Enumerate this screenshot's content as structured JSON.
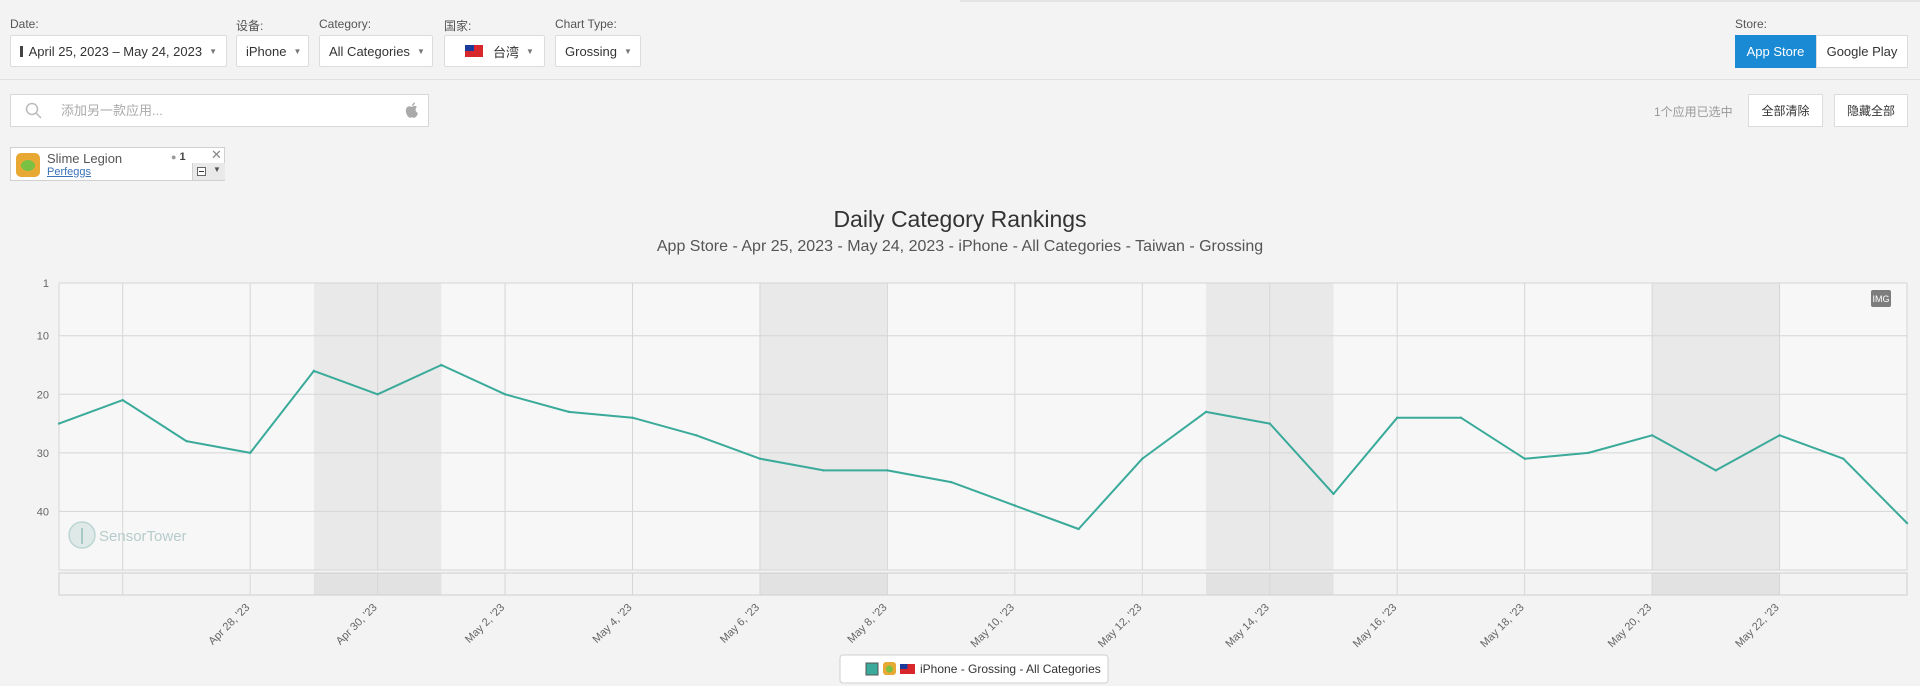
{
  "filters": {
    "date": {
      "label": "Date:",
      "value": "April 25, 2023 – May 24, 2023"
    },
    "device": {
      "label": "设备:",
      "value": "iPhone"
    },
    "category": {
      "label": "Category:",
      "value": "All Categories"
    },
    "country": {
      "label": "国家:",
      "value": "台湾"
    },
    "chart_type": {
      "label": "Chart Type:",
      "value": "Grossing"
    }
  },
  "store": {
    "label": "Store:",
    "options": [
      "App Store",
      "Google Play"
    ],
    "selected": "App Store",
    "accent": "#1a8ad4"
  },
  "search": {
    "placeholder": "添加另一款应用..."
  },
  "selection": {
    "count_text": "1个应用已选中",
    "clear_all": "全部清除",
    "hide_all": "隐藏全部"
  },
  "app_chip": {
    "name": "Slime Legion",
    "developer": "Perfeggs",
    "rank": "1",
    "icon": "slime-app-icon"
  },
  "chart_data": {
    "type": "line",
    "title": "Daily Category Rankings",
    "subtitle": "App Store - Apr 25, 2023 - May 24, 2023 - iPhone - All Categories - Taiwan - Grossing",
    "y_axis": {
      "reversed": true,
      "ticks": [
        1,
        10,
        20,
        30,
        40
      ],
      "range": [
        1,
        50
      ]
    },
    "x_ticks": [
      "Apr 28, '23",
      "Apr 30, '23",
      "May 2, '23",
      "May 4, '23",
      "May 6, '23",
      "May 8, '23",
      "May 10, '23",
      "May 12, '23",
      "May 14, '23",
      "May 16, '23",
      "May 18, '23",
      "May 20, '23",
      "May 22, '23"
    ],
    "x": [
      "Apr 25",
      "Apr 26",
      "Apr 27",
      "Apr 28",
      "Apr 29",
      "Apr 30",
      "May 1",
      "May 2",
      "May 3",
      "May 4",
      "May 5",
      "May 6",
      "May 7",
      "May 8",
      "May 9",
      "May 10",
      "May 11",
      "May 12",
      "May 13",
      "May 14",
      "May 15",
      "May 16",
      "May 17",
      "May 18",
      "May 19",
      "May 20",
      "May 21",
      "May 22",
      "May 23",
      "May 24"
    ],
    "series": [
      {
        "name": "iPhone - Grossing - All Categories",
        "color": "#3aaa9a",
        "values": [
          25,
          21,
          28,
          30,
          16,
          20,
          15,
          20,
          23,
          24,
          27,
          31,
          33,
          33,
          35,
          39,
          43,
          31,
          23,
          25,
          37,
          24,
          24,
          31,
          30,
          27,
          33,
          27,
          31,
          42
        ]
      }
    ],
    "weekends_shaded": true,
    "watermark": "SensorTower",
    "export_badge": "IMG",
    "grid": true,
    "legend_position": "bottom-center"
  }
}
